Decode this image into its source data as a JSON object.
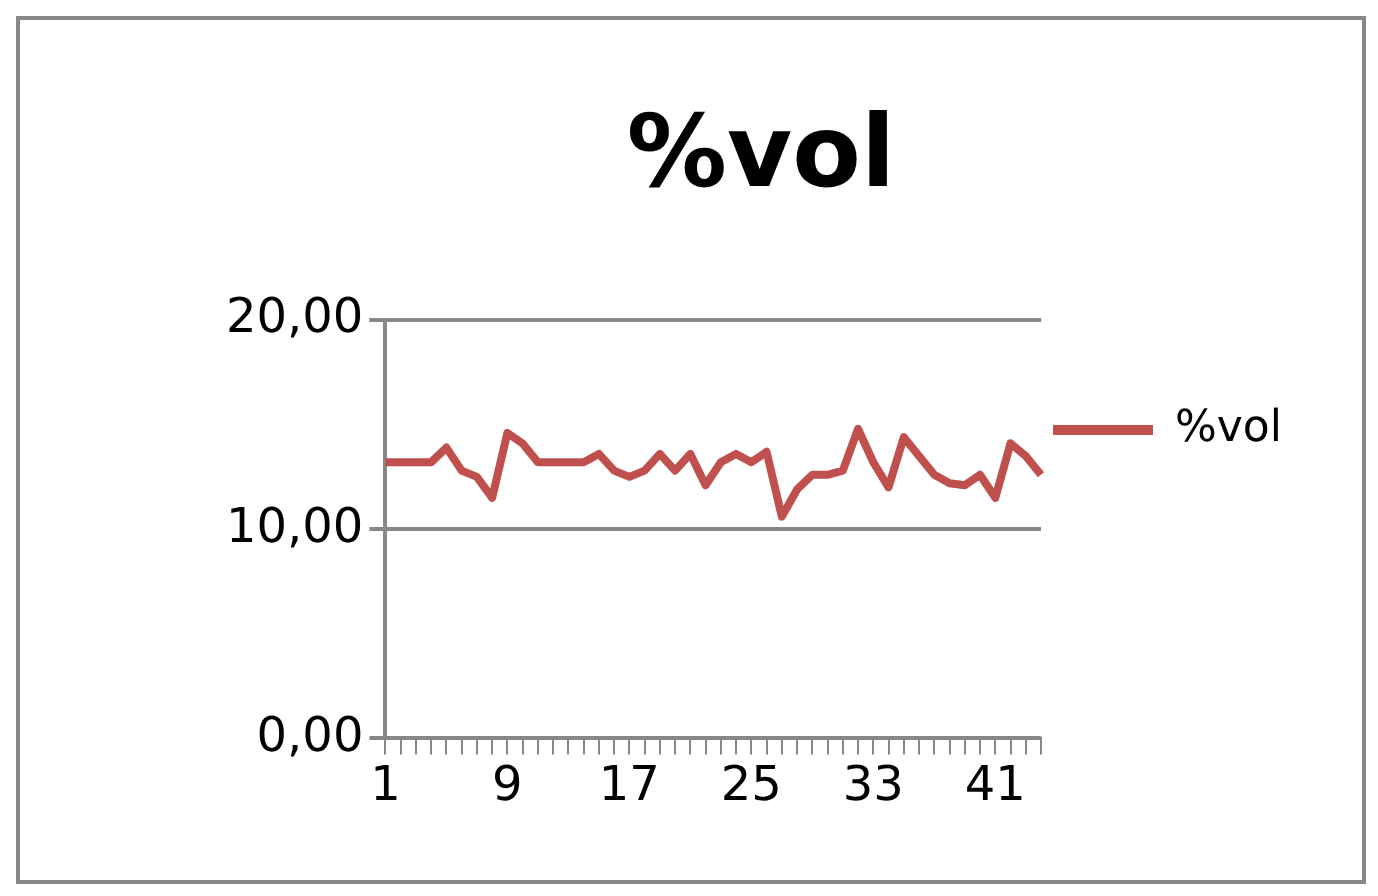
{
  "chart_data": {
    "type": "line",
    "title": "%vol",
    "categories": [
      "1",
      null,
      null,
      null,
      null,
      null,
      null,
      null,
      "9",
      null,
      null,
      null,
      null,
      null,
      null,
      null,
      "17",
      null,
      null,
      null,
      null,
      null,
      null,
      null,
      "25",
      null,
      null,
      null,
      null,
      null,
      null,
      null,
      "33",
      null,
      null,
      null,
      null,
      null,
      null,
      null,
      "41",
      null,
      null,
      null
    ],
    "series": [
      {
        "name": "%vol",
        "color": "#c0504d",
        "values": [
          13.2,
          13.2,
          13.2,
          13.2,
          13.9,
          12.8,
          12.5,
          11.5,
          14.6,
          14.1,
          13.2,
          13.2,
          13.2,
          13.2,
          13.6,
          12.8,
          12.5,
          12.8,
          13.6,
          12.8,
          13.6,
          12.1,
          13.2,
          13.6,
          13.2,
          13.7,
          10.6,
          11.9,
          12.6,
          12.6,
          12.8,
          14.8,
          13.2,
          12.0,
          14.4,
          13.5,
          12.6,
          12.2,
          12.1,
          12.6,
          11.5,
          14.1,
          13.5,
          12.6
        ]
      }
    ],
    "ylim": [
      0,
      20
    ],
    "yticks": [
      {
        "value": 0,
        "label": "0,00"
      },
      {
        "value": 10,
        "label": "10,00"
      },
      {
        "value": 20,
        "label": "20,00"
      }
    ],
    "grid": "y",
    "legend": "right",
    "marker": "none",
    "line_style": "solid"
  }
}
